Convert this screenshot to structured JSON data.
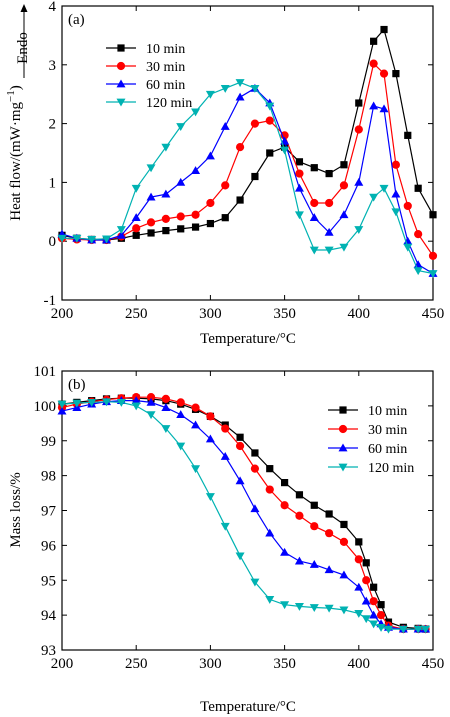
{
  "chart_data": [
    {
      "type": "line",
      "panel_label": "(a)",
      "xlabel": "Temperature/°C",
      "ylabel": "Heat flow/(mW·mg",
      "ylabel_sup": "−1",
      "ylabel_close": ")",
      "endo_label": "Endo",
      "xlim": [
        200,
        450
      ],
      "ylim": [
        -1,
        4
      ],
      "xticks": [
        200,
        250,
        300,
        350,
        400,
        450
      ],
      "yticks": [
        -1,
        0,
        1,
        2,
        3,
        4
      ],
      "grid": false,
      "legend_position": "top-left",
      "series": [
        {
          "name": "10 min",
          "color": "#000000",
          "marker": "square",
          "x": [
            200,
            210,
            220,
            230,
            240,
            250,
            260,
            270,
            280,
            290,
            300,
            310,
            320,
            330,
            340,
            350,
            360,
            370,
            380,
            390,
            400,
            410,
            417,
            425,
            433,
            440,
            450
          ],
          "y": [
            0.1,
            0.05,
            0.03,
            0.02,
            0.05,
            0.1,
            0.14,
            0.18,
            0.21,
            0.24,
            0.3,
            0.4,
            0.7,
            1.1,
            1.5,
            1.6,
            1.35,
            1.25,
            1.15,
            1.3,
            2.35,
            3.4,
            3.6,
            2.85,
            1.8,
            0.9,
            0.45
          ]
        },
        {
          "name": "30 min",
          "color": "#ff0000",
          "marker": "circle",
          "x": [
            200,
            210,
            220,
            230,
            240,
            250,
            260,
            270,
            280,
            290,
            300,
            310,
            320,
            330,
            340,
            350,
            360,
            370,
            380,
            390,
            400,
            410,
            417,
            425,
            433,
            440,
            450
          ],
          "y": [
            0.05,
            0.03,
            0.02,
            0.02,
            0.08,
            0.22,
            0.32,
            0.38,
            0.42,
            0.45,
            0.65,
            0.95,
            1.6,
            2.0,
            2.05,
            1.8,
            1.15,
            0.65,
            0.65,
            0.95,
            1.9,
            3.02,
            2.85,
            1.3,
            0.6,
            0.12,
            -0.25
          ]
        },
        {
          "name": "60 min",
          "color": "#0000ff",
          "marker": "triangle-up",
          "x": [
            200,
            210,
            220,
            230,
            240,
            250,
            260,
            270,
            280,
            290,
            300,
            310,
            320,
            330,
            340,
            350,
            360,
            370,
            380,
            390,
            400,
            410,
            417,
            425,
            433,
            440,
            450
          ],
          "y": [
            0.12,
            0.05,
            0.02,
            0.02,
            0.1,
            0.4,
            0.75,
            0.8,
            1.0,
            1.2,
            1.45,
            1.95,
            2.45,
            2.6,
            2.35,
            1.7,
            0.9,
            0.4,
            0.15,
            0.45,
            1.0,
            2.3,
            2.25,
            0.8,
            0.0,
            -0.4,
            -0.55
          ]
        },
        {
          "name": "120 min",
          "color": "#00b2b2",
          "marker": "triangle-down",
          "x": [
            200,
            210,
            220,
            230,
            240,
            250,
            260,
            270,
            280,
            290,
            300,
            310,
            320,
            330,
            340,
            350,
            360,
            370,
            380,
            390,
            400,
            410,
            417,
            425,
            433,
            440,
            450
          ],
          "y": [
            0.05,
            0.05,
            0.03,
            0.04,
            0.2,
            0.9,
            1.25,
            1.6,
            1.95,
            2.2,
            2.5,
            2.6,
            2.7,
            2.6,
            2.3,
            1.55,
            0.45,
            -0.15,
            -0.15,
            -0.1,
            0.2,
            0.75,
            0.9,
            0.5,
            -0.1,
            -0.5,
            -0.55
          ]
        }
      ]
    },
    {
      "type": "line",
      "panel_label": "(b)",
      "xlabel": "Temperature/°C",
      "ylabel": "Mass loss/%",
      "xlim": [
        200,
        450
      ],
      "ylim": [
        93,
        101
      ],
      "xticks": [
        200,
        250,
        300,
        350,
        400,
        450
      ],
      "yticks": [
        93,
        94,
        95,
        96,
        97,
        98,
        99,
        100,
        101
      ],
      "grid": false,
      "legend_position": "top-right",
      "series": [
        {
          "name": "10 min",
          "color": "#000000",
          "marker": "square",
          "x": [
            200,
            210,
            220,
            230,
            240,
            250,
            260,
            270,
            280,
            290,
            300,
            310,
            320,
            330,
            340,
            350,
            360,
            370,
            380,
            390,
            400,
            405,
            410,
            415,
            420,
            430,
            440,
            445
          ],
          "y": [
            100.05,
            100.1,
            100.15,
            100.2,
            100.22,
            100.22,
            100.2,
            100.15,
            100.05,
            99.9,
            99.7,
            99.45,
            99.1,
            98.65,
            98.2,
            97.8,
            97.45,
            97.15,
            96.9,
            96.6,
            96.1,
            95.5,
            94.8,
            94.3,
            93.8,
            93.65,
            93.62,
            93.6
          ]
        },
        {
          "name": "30 min",
          "color": "#ff0000",
          "marker": "circle",
          "x": [
            200,
            210,
            220,
            230,
            240,
            250,
            260,
            270,
            280,
            290,
            300,
            310,
            320,
            330,
            340,
            350,
            360,
            370,
            380,
            390,
            400,
            405,
            410,
            415,
            420,
            430,
            440,
            445
          ],
          "y": [
            99.95,
            100.05,
            100.12,
            100.18,
            100.22,
            100.25,
            100.25,
            100.2,
            100.1,
            99.95,
            99.7,
            99.35,
            98.85,
            98.2,
            97.6,
            97.15,
            96.85,
            96.55,
            96.35,
            96.1,
            95.6,
            95.0,
            94.4,
            94.0,
            93.7,
            93.6,
            93.6,
            93.6
          ]
        },
        {
          "name": "60 min",
          "color": "#0000ff",
          "marker": "triangle-up",
          "x": [
            200,
            210,
            220,
            230,
            240,
            250,
            260,
            270,
            280,
            290,
            300,
            310,
            320,
            330,
            340,
            350,
            360,
            370,
            380,
            390,
            400,
            405,
            410,
            415,
            420,
            430,
            440,
            445
          ],
          "y": [
            99.85,
            99.95,
            100.05,
            100.12,
            100.15,
            100.15,
            100.1,
            99.95,
            99.75,
            99.45,
            99.05,
            98.55,
            97.85,
            97.05,
            96.35,
            95.8,
            95.55,
            95.45,
            95.3,
            95.15,
            94.8,
            94.4,
            94.0,
            93.75,
            93.65,
            93.6,
            93.6,
            93.6
          ]
        },
        {
          "name": "120 min",
          "color": "#00b2b2",
          "marker": "triangle-down",
          "x": [
            200,
            210,
            220,
            230,
            240,
            250,
            260,
            270,
            280,
            290,
            300,
            310,
            320,
            330,
            340,
            350,
            360,
            370,
            380,
            390,
            400,
            405,
            410,
            415,
            420,
            430,
            440,
            445
          ],
          "y": [
            100.05,
            100.08,
            100.1,
            100.12,
            100.1,
            100.0,
            99.75,
            99.35,
            98.85,
            98.2,
            97.4,
            96.55,
            95.7,
            94.95,
            94.45,
            94.3,
            94.25,
            94.22,
            94.2,
            94.15,
            94.05,
            93.9,
            93.75,
            93.65,
            93.6,
            93.6,
            93.6,
            93.6
          ]
        }
      ]
    }
  ]
}
